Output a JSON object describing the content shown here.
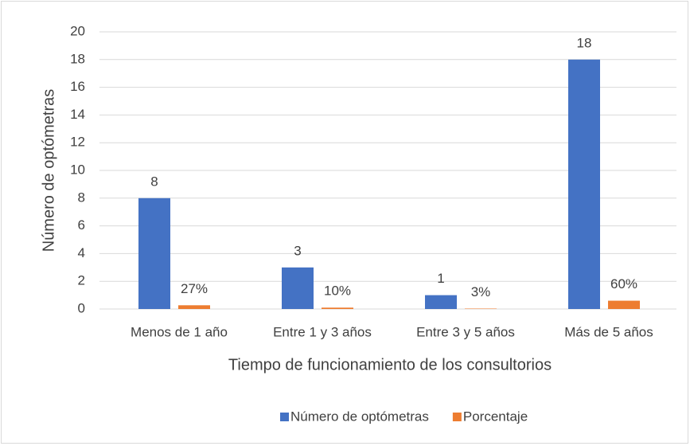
{
  "chart_data": {
    "type": "bar",
    "categories": [
      "Menos de 1 año",
      "Entre 1 y 3 años",
      "Entre 3 y 5 años",
      "Más de 5 años"
    ],
    "series": [
      {
        "name": "Número de optómetras",
        "color": "#4472c4",
        "values": [
          8,
          3,
          1,
          18
        ]
      },
      {
        "name": "Porcentaje",
        "color": "#ed7d31",
        "values": [
          0.27,
          0.1,
          0.03,
          0.6
        ],
        "value_labels": [
          "27%",
          "10%",
          "3%",
          "60%"
        ]
      }
    ],
    "x_label": "Tiempo de funcionamiento de los consultorios",
    "y_label": "Número  de optómetras",
    "ylim": [
      0,
      20
    ],
    "yticks": [
      0,
      2,
      4,
      6,
      8,
      10,
      12,
      14,
      16,
      18,
      20
    ],
    "grid": true,
    "legend": "bottom"
  }
}
